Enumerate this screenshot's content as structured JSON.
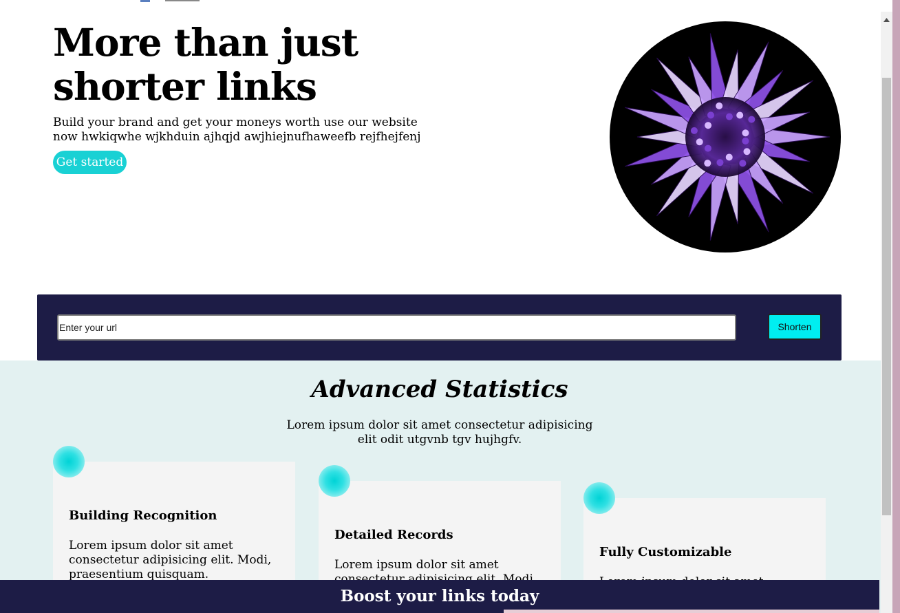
{
  "hero": {
    "title": "More than just shorter links",
    "subtitle": "Build your brand and get your moneys worth use our website now hwkiqwhe wjkhduin ajhqjd awjhiejnufhaweefb rejfhejfenj",
    "cta_label": "Get started",
    "image_icon": "abstract-spiky-sphere-illustration"
  },
  "shortener": {
    "input_placeholder": "Enter your url",
    "button_label": "Shorten"
  },
  "stats": {
    "title": "Advanced Statistics",
    "description": "Lorem ipsum dolor sit amet consectetur adipisicing elit odit utgvnb tgv hujhgfv.",
    "cards": [
      {
        "title": "Building Recognition",
        "text": "Lorem ipsum dolor sit amet consectetur adipisicing elit. Modi, praesentium quisquam. Repellendus"
      },
      {
        "title": "Detailed Records",
        "text": "Lorem ipsum dolor sit amet consectetur adipisicing elit. Modi,"
      },
      {
        "title": "Fully Customizable",
        "text": "Lorem ipsum dolor sit amet"
      }
    ]
  },
  "footer": {
    "banner_title": "Boost your links today"
  },
  "colors": {
    "accent": "#19d1d4",
    "button_cyan": "#00eef0",
    "navy": "#1d1c46",
    "stats_bg": "#e3f1f1",
    "card_bg": "#f4f4f4"
  }
}
